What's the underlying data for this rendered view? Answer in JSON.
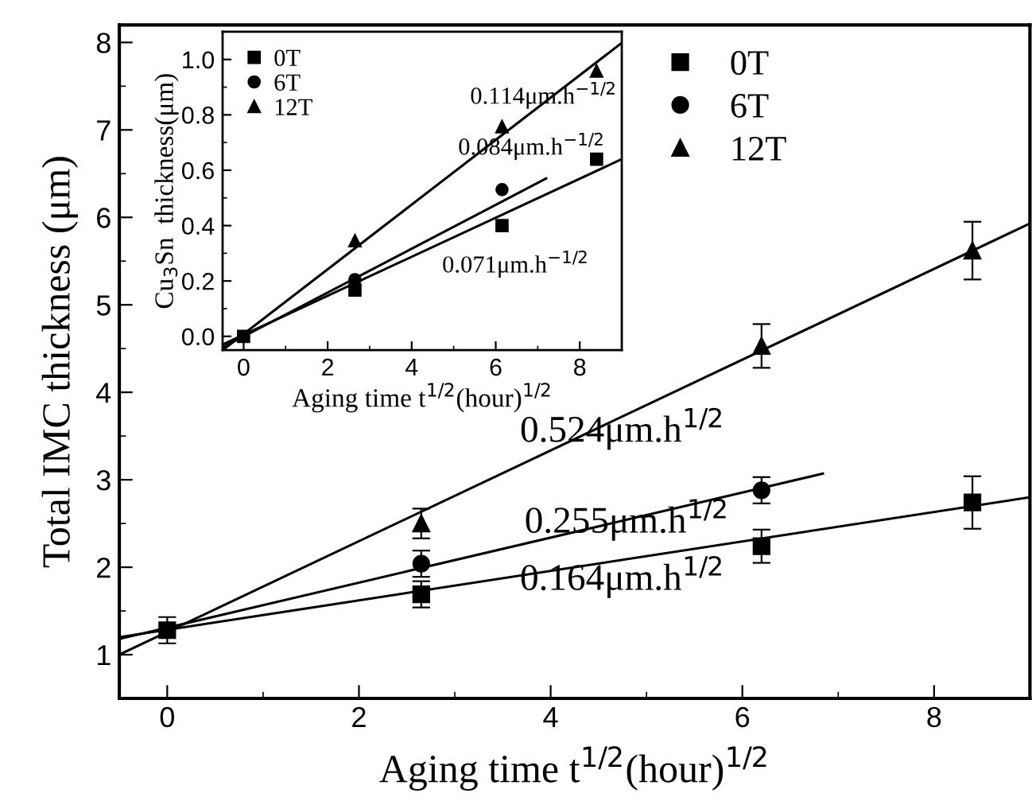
{
  "chart_data": [
    {
      "type": "scatter",
      "xlabel": "Aging time t$^{1/2}$(hour)$^{1/2}$",
      "ylabel": "Total IMC thickness (μm)",
      "xlim": [
        -0.5,
        9
      ],
      "ylim": [
        0.5,
        8.2
      ],
      "xticks": [
        0,
        {
          "value": 1,
          "label": null
        },
        2,
        {
          "value": 3,
          "label": null
        },
        4,
        {
          "value": 5,
          "label": null
        },
        6,
        {
          "value": 7,
          "label": null
        },
        8
      ],
      "yticks": [
        1,
        {
          "value": 1.5,
          "label": null
        },
        2,
        {
          "value": 2.5,
          "label": null
        },
        3,
        {
          "value": 3.5,
          "label": null
        },
        4,
        {
          "value": 4.5,
          "label": null
        },
        5,
        {
          "value": 5.5,
          "label": null
        },
        6,
        {
          "value": 6.5,
          "label": null
        },
        7,
        {
          "value": 7.5,
          "label": null
        },
        8
      ],
      "legend": "top right",
      "grid": false,
      "series": [
        {
          "name": "0T",
          "color": "#000000",
          "marker": "square",
          "x": [
            0,
            2.65,
            6.2,
            8.4
          ],
          "values": [
            1.28,
            1.69,
            2.24,
            2.74
          ],
          "errors": [
            0.15,
            0.15,
            0.19,
            0.3
          ]
        },
        {
          "name": "6T",
          "color": "#000000",
          "marker": "circle",
          "x": [
            2.65,
            6.2
          ],
          "values": [
            2.04,
            2.88
          ],
          "errors": [
            0.15,
            0.15
          ]
        },
        {
          "name": "12T",
          "color": "#000000",
          "marker": "triangle",
          "x": [
            2.65,
            6.2,
            8.4
          ],
          "values": [
            2.5,
            4.53,
            5.62
          ],
          "errors": [
            0.17,
            0.25,
            0.33
          ]
        },
        {
          "type": "line",
          "color": "#000000",
          "x": [
            -0.5,
            9
          ],
          "values": [
            1.2,
            2.8
          ]
        },
        {
          "type": "line",
          "color": "#000000",
          "x": [
            -0.5,
            6.84
          ],
          "values": [
            1.18,
            3.07
          ]
        },
        {
          "type": "line",
          "color": "#000000",
          "x": [
            -0.5,
            9
          ],
          "values": [
            1.0,
            5.93
          ]
        }
      ],
      "annotations": [
        "0.524μm.h$^{1/2}$",
        "0.255μm.h$^{1/2}$",
        "0.164μm.h$^{1/2}$"
      ]
    },
    {
      "type": "scatter",
      "xlabel": "Aging time t$^{1/2}$(hour)$^{1/2}$",
      "ylabel": "Cu$_{3}$Sn  thickness(μm)",
      "xlim": [
        -0.5,
        9
      ],
      "ylim": [
        -0.05,
        1.1
      ],
      "xticks": [
        0,
        {
          "value": 1,
          "label": null
        },
        2,
        {
          "value": 3,
          "label": null
        },
        4,
        {
          "value": 5,
          "label": null
        },
        6,
        {
          "value": 7,
          "label": null
        },
        8
      ],
      "yticks": [
        {
          "value": 0,
          "label": "0.0"
        },
        {
          "value": 0.1,
          "label": null
        },
        0.2,
        {
          "value": 0.3,
          "label": null
        },
        0.4,
        {
          "value": 0.5,
          "label": null
        },
        0.6,
        {
          "value": 0.7,
          "label": null
        },
        0.8,
        {
          "value": 0.9,
          "label": null
        },
        {
          "value": 1,
          "label": "1.0"
        }
      ],
      "legend": "top left",
      "grid": false,
      "series": [
        {
          "name": "0T",
          "color": "#000000",
          "marker": "square",
          "x": [
            0,
            2.65,
            6.15,
            8.4
          ],
          "values": [
            0.0,
            0.167,
            0.4,
            0.64
          ]
        },
        {
          "name": "6T",
          "color": "#000000",
          "marker": "circle",
          "x": [
            2.65,
            6.15
          ],
          "values": [
            0.205,
            0.53
          ]
        },
        {
          "name": "12T",
          "color": "#000000",
          "marker": "triangle",
          "x": [
            2.65,
            6.15,
            8.4
          ],
          "values": [
            0.345,
            0.757,
            0.958
          ]
        },
        {
          "type": "line",
          "color": "#000000",
          "x": [
            -0.5,
            9
          ],
          "values": [
            -0.03,
            0.64
          ]
        },
        {
          "type": "line",
          "color": "#000000",
          "x": [
            -0.5,
            7.2
          ],
          "values": [
            -0.04,
            0.57
          ]
        },
        {
          "type": "line",
          "color": "#000000",
          "x": [
            -0.5,
            9
          ],
          "values": [
            -0.05,
            1.06
          ]
        }
      ],
      "annotations": [
        "0.114μm.h$^{−1/2}$",
        "0.084μm.h$^{−1/2}$",
        "0.071μm.h$^{−1/2}$"
      ]
    }
  ]
}
